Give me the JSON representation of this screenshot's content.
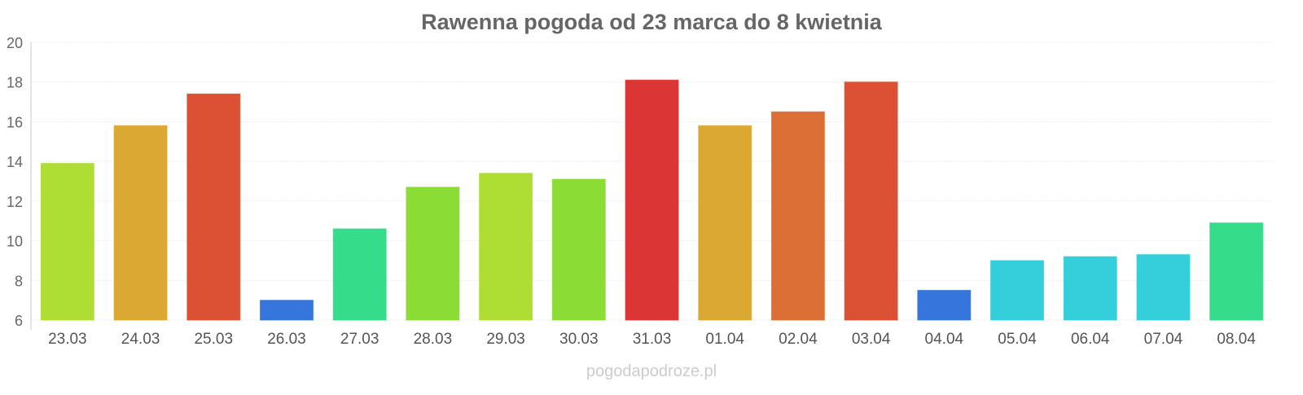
{
  "chart_data": {
    "type": "bar",
    "title": "Rawenna pogoda od 23 marca do 8 kwietnia",
    "xlabel": "",
    "ylabel": "",
    "ylim": [
      6,
      20
    ],
    "yticks": [
      6,
      8,
      10,
      12,
      14,
      16,
      18,
      20
    ],
    "grid": true,
    "categories": [
      "23.03",
      "24.03",
      "25.03",
      "26.03",
      "27.03",
      "28.03",
      "29.03",
      "30.03",
      "31.03",
      "01.04",
      "02.04",
      "03.04",
      "04.04",
      "05.04",
      "06.04",
      "07.04",
      "08.04"
    ],
    "values": [
      13.9,
      15.8,
      17.4,
      7.0,
      10.6,
      12.7,
      13.4,
      13.1,
      18.1,
      15.8,
      16.5,
      18.0,
      7.5,
      9.0,
      9.2,
      9.3,
      10.9
    ],
    "colors": [
      "#aedd33",
      "#dca834",
      "#dc5033",
      "#3575dc",
      "#35dc8a",
      "#8bdc35",
      "#aedd33",
      "#8bdc35",
      "#dc3535",
      "#dca834",
      "#dc6f35",
      "#dc5033",
      "#3575dc",
      "#35cfdc",
      "#35cfdc",
      "#35cfdc",
      "#35dc8a"
    ],
    "watermark": "pogodapodroze.pl"
  }
}
